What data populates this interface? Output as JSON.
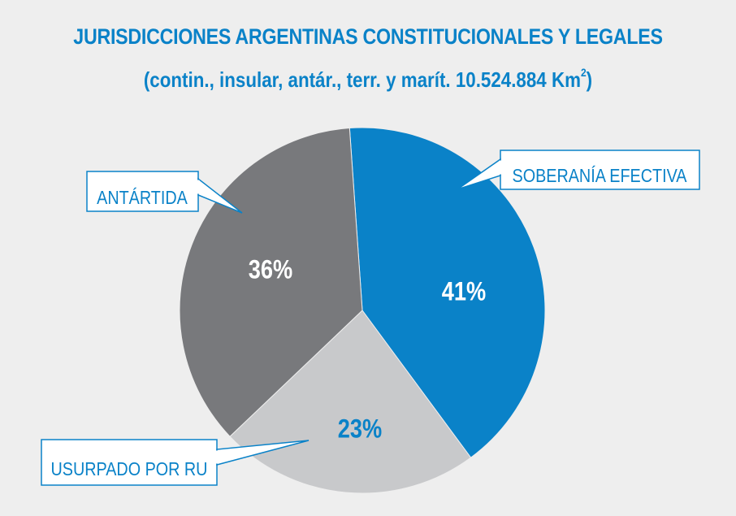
{
  "header": {
    "title": "JURISDICCIONES ARGENTINAS CONSTITUCIONALES Y LEGALES",
    "subtitle_main": "(contin., insular, antár., terr. y marít. 10.524.884 Km",
    "subtitle_sup": "2",
    "subtitle_close": ")"
  },
  "chart_data": {
    "type": "pie",
    "start_angle_deg": -4,
    "direction": "clockwise",
    "slices": [
      {
        "label": "SOBERANÍA EFECTIVA",
        "value": 41,
        "value_label": "41%",
        "color": "#0a82c8",
        "label_color": "#ffffff"
      },
      {
        "label": "USURPADO POR RU",
        "value": 23,
        "value_label": "23%",
        "color": "#c8c9cb",
        "label_color": "#0a82c8"
      },
      {
        "label": "ANTÁRTIDA",
        "value": 36,
        "value_label": "36%",
        "color": "#78797c",
        "label_color": "#ffffff"
      }
    ]
  },
  "colors": {
    "background": "#eeeeee",
    "accent": "#0a82c8",
    "callout_fill": "#ffffff"
  }
}
